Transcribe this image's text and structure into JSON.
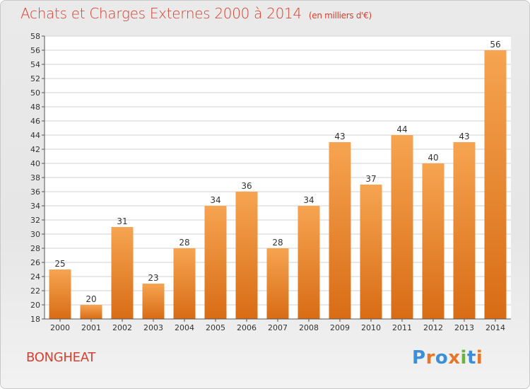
{
  "header": {
    "title": "Achats et Charges Externes 2000 à 2014",
    "subtitle": "(en milliers d'€)"
  },
  "footer": {
    "commune": "BONGHEAT",
    "logo": "Proxiti",
    "logo_colors": [
      "#3a8fd8",
      "#e5762a",
      "#3a8fd8",
      "#e5762a",
      "#6ab33c",
      "#3a8fd8",
      "#e5762a"
    ]
  },
  "colors": {
    "accent": "#d6402f",
    "bar_top": "#f6a451",
    "bar_bottom": "#d86c15",
    "grid": "#d2d2d2",
    "axis": "#555555"
  },
  "chart_data": {
    "type": "bar",
    "title": "Achats et Charges Externes 2000 à 2014",
    "subtitle": "(en milliers d'€)",
    "xlabel": "",
    "ylabel": "",
    "ylim": [
      18,
      58
    ],
    "yticks": [
      18,
      20,
      22,
      24,
      26,
      28,
      30,
      32,
      34,
      36,
      38,
      40,
      42,
      44,
      46,
      48,
      50,
      52,
      54,
      56,
      58
    ],
    "grid": true,
    "categories": [
      "2000",
      "2001",
      "2002",
      "2003",
      "2004",
      "2005",
      "2006",
      "2007",
      "2008",
      "2009",
      "2010",
      "2011",
      "2012",
      "2013",
      "2014"
    ],
    "values": [
      25,
      20,
      31,
      23,
      28,
      34,
      36,
      28,
      34,
      43,
      37,
      44,
      40,
      43,
      56
    ],
    "data_labels": [
      "25",
      "20",
      "31",
      "23",
      "28",
      "34",
      "36",
      "28",
      "34",
      "43",
      "37",
      "44",
      "40",
      "43",
      "56"
    ]
  }
}
